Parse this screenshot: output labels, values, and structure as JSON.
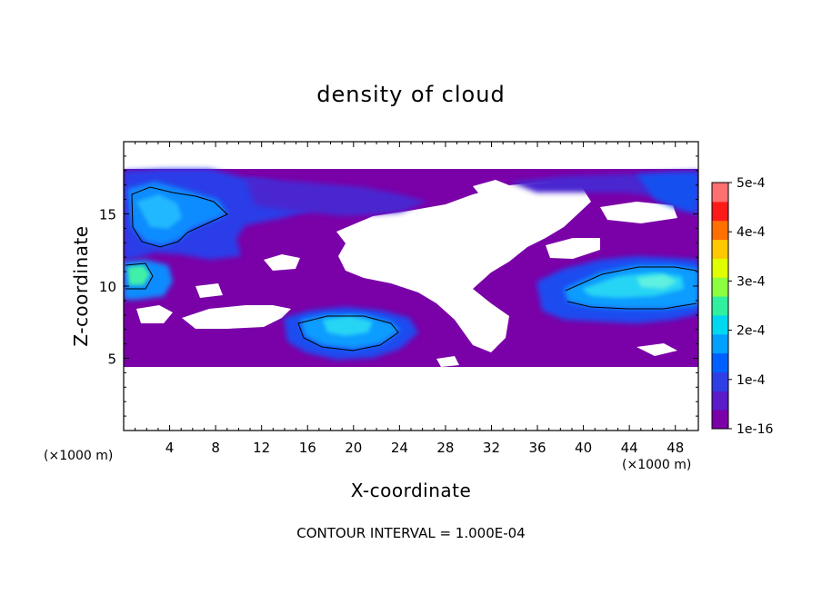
{
  "chart_data": {
    "type": "heatmap",
    "title": "density of cloud",
    "xlabel": "X-coordinate",
    "ylabel": "Z-coordinate",
    "x_unit": "(×1000 m)",
    "x_unit_right": "(×1000 m)",
    "xlim": [
      0,
      50
    ],
    "ylim": [
      0,
      20
    ],
    "x_ticks": [
      4,
      8,
      12,
      16,
      20,
      24,
      28,
      32,
      36,
      40,
      44,
      48
    ],
    "y_ticks": [
      5,
      10,
      15
    ],
    "colorbar": {
      "ticks": [
        "5e-4",
        "4e-4",
        "3e-4",
        "2e-4",
        "1e-4",
        "1e-16"
      ],
      "tick_values": [
        0.0005,
        0.0004,
        0.0003,
        0.0002,
        0.0001,
        1e-16
      ],
      "colors": [
        "#7a00a8",
        "#5a1cc8",
        "#2e3fe6",
        "#0060ff",
        "#00a0ff",
        "#00d8f0",
        "#30f0a0",
        "#8cff40",
        "#e0ff00",
        "#ffc800",
        "#ff7000",
        "#ff1a1a",
        "#ff7070"
      ]
    },
    "cloud_layer_z": [
      4.5,
      18
    ],
    "cloud_regions": [
      {
        "name": "upper-left",
        "x": [
          0,
          11
        ],
        "z": [
          12,
          17.5
        ],
        "value": 0.00012
      },
      {
        "name": "left-edge",
        "x": [
          0,
          2
        ],
        "z": [
          9.5,
          11.8
        ],
        "value": 0.00018
      },
      {
        "name": "lower-center",
        "x": [
          14,
          24
        ],
        "z": [
          5,
          8
        ],
        "value": 0.00015
      },
      {
        "name": "right-middle",
        "x": [
          36,
          50
        ],
        "z": [
          7.5,
          11.8
        ],
        "value": 0.00016
      },
      {
        "name": "upper-right",
        "x": [
          43,
          50
        ],
        "z": [
          14.5,
          17.8
        ],
        "value": 0.0001
      }
    ],
    "footer": "CONTOUR INTERVAL = 1.000E-04"
  }
}
